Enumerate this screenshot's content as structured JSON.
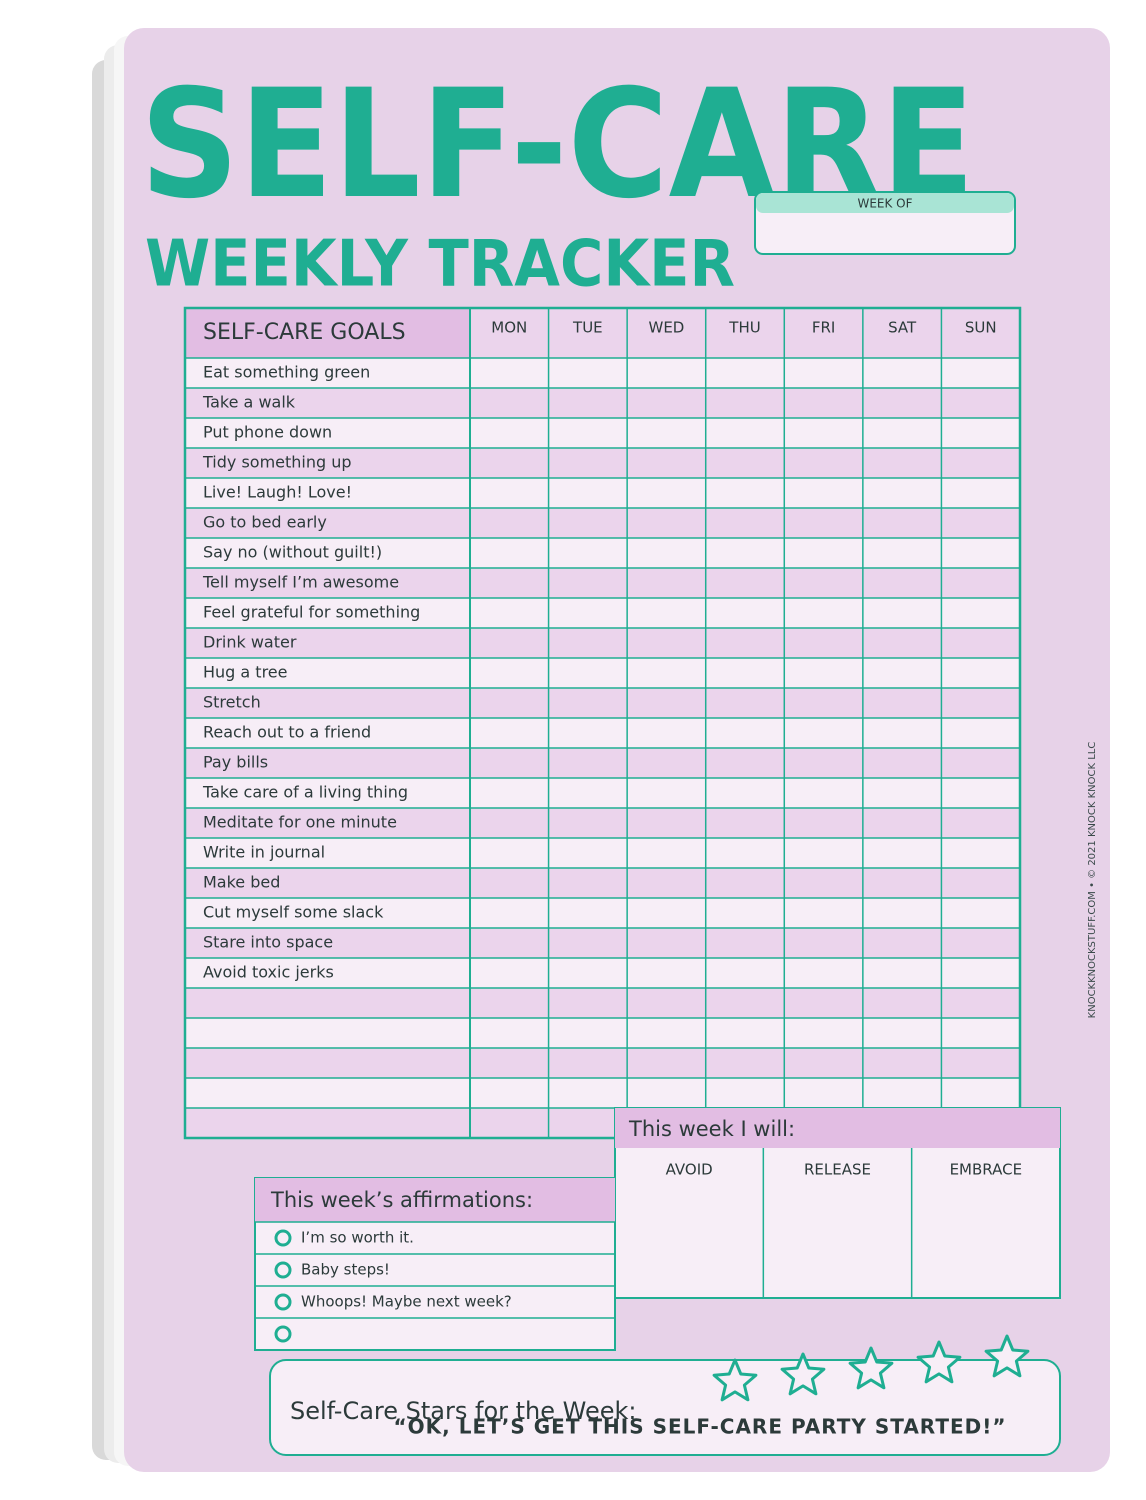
{
  "title": "SELF-CARE",
  "subtitle": "WEEKLY TRACKER",
  "week_of": "WEEK OF",
  "tracker": {
    "goals_header": "SELF-CARE GOALS",
    "days": [
      "MON",
      "TUE",
      "WED",
      "THU",
      "FRI",
      "SAT",
      "SUN"
    ],
    "goals": [
      "Eat something green",
      "Take a walk",
      "Put phone down",
      "Tidy something up",
      "Live! Laugh! Love!",
      "Go to bed early",
      "Say no (without guilt!)",
      "Tell myself I’m awesome",
      "Feel grateful for something",
      "Drink water",
      "Hug a tree",
      "Stretch",
      "Reach out to a friend",
      "Pay bills",
      "Take care of a living thing",
      "Meditate for one minute",
      "Write in journal",
      "Make bed",
      "Cut myself some slack",
      "Stare into space",
      "Avoid toxic jerks"
    ]
  },
  "affirmations": {
    "title": "This week’s affirmations:",
    "items": [
      "I’m so worth it.",
      "Baby steps!",
      "Whoops! Maybe next week?"
    ]
  },
  "this_week": {
    "title": "This week I will:",
    "columns": [
      "AVOID",
      "RELEASE",
      "EMBRACE"
    ]
  },
  "stars_label": "Self-Care Stars for the Week:",
  "quote": "“OK, LET’S GET THIS SELF-CARE PARTY STARTED!”",
  "side_text": "KNOCKKNOCKSTUFF.COM • © 2021 KNOCK KNOCK LLC"
}
